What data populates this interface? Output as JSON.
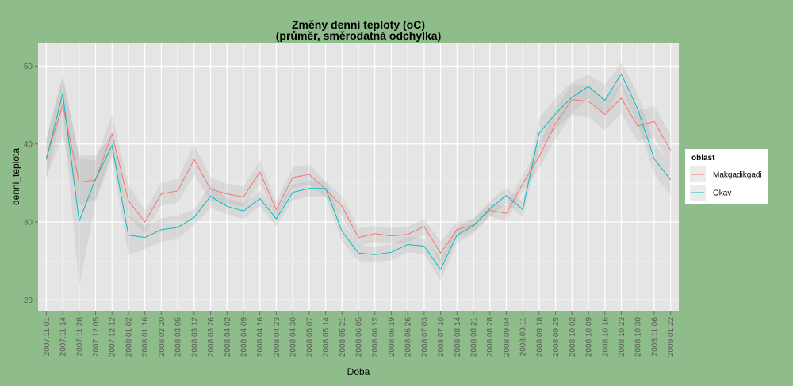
{
  "chart_data": {
    "type": "line",
    "title": "Změny denní teploty (oC)",
    "subtitle": "(průměr, směrodatná odchylka)",
    "xlabel": "Doba",
    "ylabel": "denni_teplota",
    "ylim": [
      18.5,
      53
    ],
    "yticks": [
      20,
      30,
      40,
      50
    ],
    "grid": true,
    "legend_position": "right",
    "legend_title": "oblast",
    "categories": [
      "2007.11.01",
      "2007.11.14",
      "2007.11.28",
      "2007.12.05",
      "2007.12.12",
      "2008.01.02",
      "2008.01.16",
      "2008.02.20",
      "2008.03.05",
      "2008.03.12",
      "2008.03.26",
      "2008.04.02",
      "2008.04.09",
      "2008.04.16",
      "2008.04.23",
      "2008.04.30",
      "2008.05.07",
      "2008.05.14",
      "2008.05.21",
      "2008.06.05",
      "2008.06.12",
      "2008.06.19",
      "2008.06.26",
      "2008.07.03",
      "2008.07.10",
      "2008.08.14",
      "2008.08.21",
      "2008.08.28",
      "2008.09.04",
      "2008.09.11",
      "2008.09.18",
      "2008.09.25",
      "2008.10.02",
      "2008.10.09",
      "2008.10.16",
      "2008.10.23",
      "2008.10.30",
      "2008.11.06",
      "2009.01.22"
    ],
    "series": [
      {
        "name": "Makgadikgadi",
        "color": "#f8766d",
        "values": [
          38.2,
          45.0,
          35.1,
          35.4,
          41.3,
          32.7,
          30.0,
          33.6,
          34.0,
          38.0,
          34.2,
          33.6,
          33.2,
          36.4,
          31.6,
          35.7,
          36.1,
          34.2,
          32.0,
          28.0,
          28.5,
          28.2,
          28.4,
          29.4,
          26.0,
          29.0,
          29.6,
          31.5,
          31.1,
          34.9,
          38.4,
          42.6,
          45.7,
          45.5,
          43.8,
          45.9,
          42.3,
          42.9,
          39.2
        ],
        "band": [
          2.5,
          4.0,
          3.0,
          2.5,
          2.5,
          2.0,
          1.5,
          1.5,
          1.5,
          2.0,
          1.5,
          1.3,
          1.3,
          1.5,
          1.0,
          1.3,
          1.3,
          1.0,
          1.3,
          1.2,
          1.0,
          1.0,
          1.0,
          1.0,
          1.5,
          1.0,
          0.8,
          0.8,
          1.0,
          1.0,
          1.5,
          2.0,
          2.0,
          2.0,
          2.0,
          2.0,
          2.0,
          2.0,
          2.0
        ]
      },
      {
        "name": "Okav",
        "color": "#00bfc4",
        "values": [
          38.0,
          46.5,
          30.1,
          35.5,
          39.8,
          28.3,
          28.0,
          29.0,
          29.3,
          30.6,
          33.3,
          32.0,
          31.4,
          33.0,
          30.4,
          33.8,
          34.3,
          34.3,
          28.8,
          26.0,
          25.8,
          26.1,
          27.1,
          26.9,
          23.9,
          28.3,
          29.5,
          31.7,
          33.4,
          31.6,
          41.4,
          43.9,
          46.0,
          47.4,
          45.6,
          49.0,
          44.5,
          38.1,
          35.4
        ],
        "band": [
          2.5,
          2.0,
          8.5,
          3.0,
          1.5,
          2.5,
          1.5,
          1.5,
          1.5,
          1.0,
          1.5,
          1.0,
          1.0,
          1.0,
          1.0,
          1.0,
          1.0,
          1.0,
          1.3,
          1.0,
          1.0,
          1.0,
          1.0,
          1.0,
          1.5,
          1.0,
          1.0,
          1.0,
          1.0,
          1.0,
          2.0,
          2.0,
          2.0,
          1.5,
          2.0,
          1.5,
          2.0,
          2.0,
          2.0
        ]
      }
    ]
  }
}
